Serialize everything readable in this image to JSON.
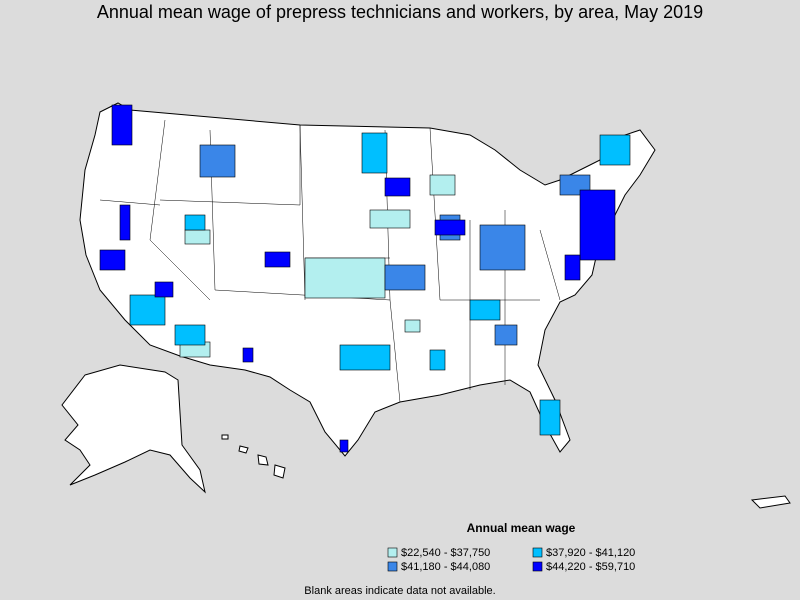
{
  "title": "Annual mean wage of prepress technicians and workers, by area, May 2019",
  "legend": {
    "title": "Annual mean wage",
    "items": [
      {
        "label": "$22,540 - $37,750",
        "color": "#b3efef"
      },
      {
        "label": "$37,920 - $41,120",
        "color": "#00bfff"
      },
      {
        "label": "$41,180 - $44,080",
        "color": "#3a86e8"
      },
      {
        "label": "$44,220 - $59,710",
        "color": "#0000ff"
      }
    ]
  },
  "note": "Blank areas indicate data not available."
}
